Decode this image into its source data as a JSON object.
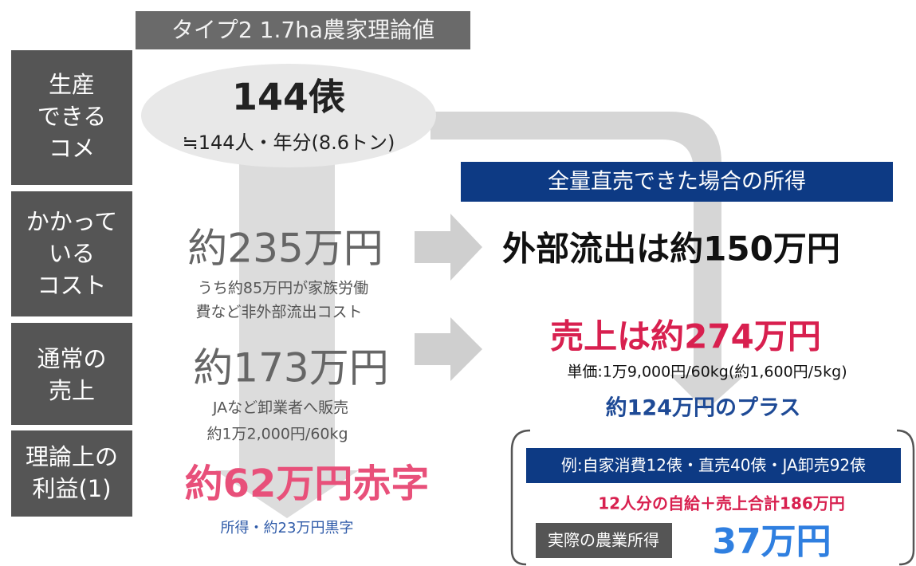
{
  "title": "タイプ2 1.7ha農家理論値",
  "row_labels": [
    [
      "生産",
      "できる",
      "コメ"
    ],
    [
      "かかって",
      "いる",
      "コスト"
    ],
    [
      "通常の",
      "売上"
    ],
    [
      "理論上の",
      "利益(1)"
    ]
  ],
  "production": {
    "main": "144俵",
    "sub": "≒144人・年分(8.6トン)"
  },
  "cost": {
    "main": "約235万円",
    "notes": [
      "うち約85万円が家族労働",
      "費など非外部流出コスト"
    ]
  },
  "sales": {
    "main": "約173万円",
    "notes": [
      "JAなど卸業者へ販売",
      "約1万2,000円/60kg"
    ]
  },
  "profit": {
    "main": "約62万円赤字",
    "note": "所得・約23万円黒字"
  },
  "direct": {
    "banner": "全量直売できた場合の所得",
    "outflow": "外部流出は約150万円",
    "sales": "売上は約274万円",
    "price": "単価:1万9,000円/60kg(約1,600円/5kg)",
    "plus": "約124万円のプラス",
    "example": "例:自家消費12俵・直売40俵・JA卸売92俵",
    "total": "12人分の自給＋売上合計186万円",
    "income_label": "実際の農業所得",
    "income": "37万円"
  }
}
